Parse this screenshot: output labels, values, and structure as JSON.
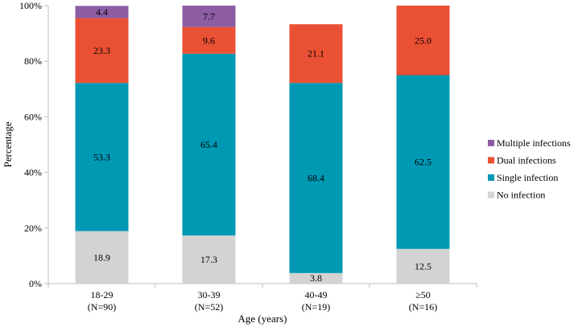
{
  "chart_data": {
    "type": "bar",
    "stacked": true,
    "title": "",
    "xlabel": "Age (years)",
    "ylabel": "Percentage",
    "ylim": [
      0,
      100
    ],
    "y_ticks": [
      "0%",
      "20%",
      "40%",
      "60%",
      "80%",
      "100%"
    ],
    "y_tick_values": [
      0,
      20,
      40,
      60,
      80,
      100
    ],
    "categories": [
      {
        "name": "18-29",
        "n": "(N=90)"
      },
      {
        "name": "30-39",
        "n": "(N=52)"
      },
      {
        "name": "40-49",
        "n": "(N=19)"
      },
      {
        "name": "≥50",
        "n": "(N=16)"
      }
    ],
    "series": [
      {
        "name": "No infection",
        "color": "#d3d3d3",
        "values": [
          18.9,
          17.3,
          3.8,
          12.5
        ],
        "labels": [
          "18.9",
          "17.3",
          "3.8",
          "12.5"
        ]
      },
      {
        "name": "Single infection",
        "color": "#0099b4",
        "values": [
          53.3,
          65.4,
          68.4,
          62.5
        ],
        "labels": [
          "53.3",
          "65.4",
          "68.4",
          "62.5"
        ]
      },
      {
        "name": "Dual infections",
        "color": "#ea5034",
        "values": [
          23.3,
          9.6,
          21.1,
          25.0
        ],
        "labels": [
          "23.3",
          "9.6",
          "21.1",
          "25.0"
        ]
      },
      {
        "name": "Multiple infections",
        "color": "#8c5da3",
        "values": [
          4.4,
          7.7,
          0,
          0
        ],
        "labels": [
          "4.4",
          "7.7",
          "",
          ""
        ]
      }
    ],
    "legend": {
      "position": "right",
      "order": [
        "Multiple infections",
        "Dual infections",
        "Single infection",
        "No infection"
      ]
    },
    "grid": false
  }
}
